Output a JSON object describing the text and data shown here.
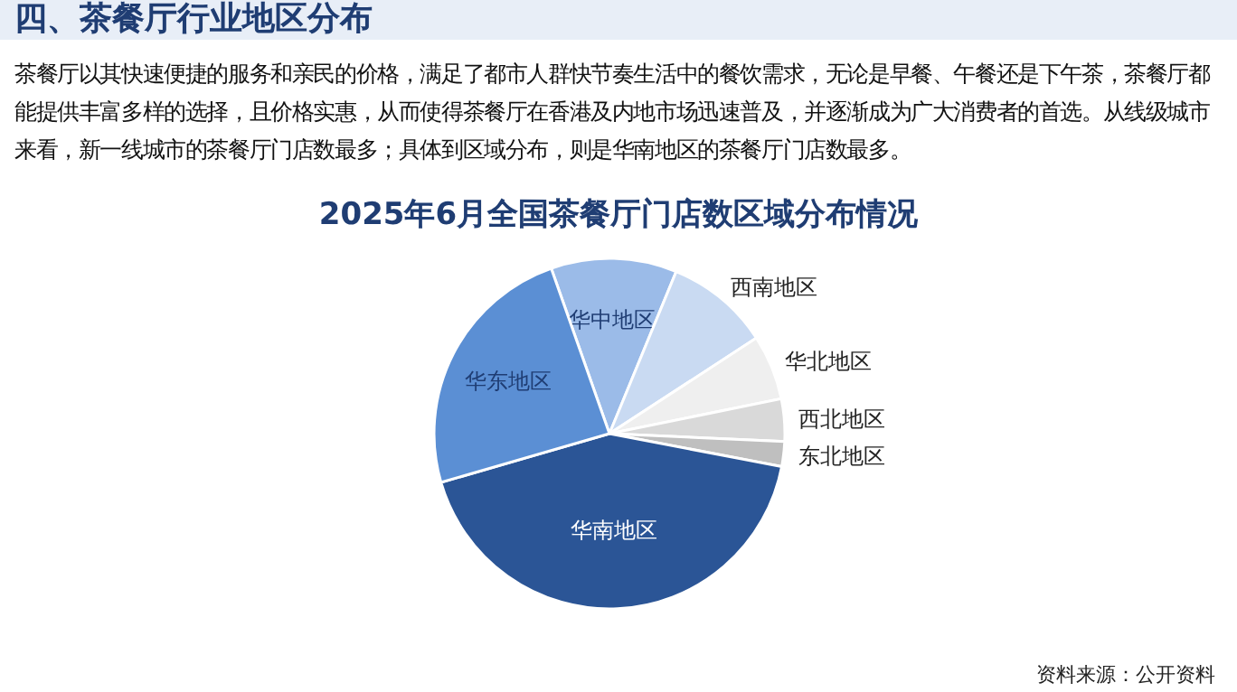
{
  "chart_data": {
    "type": "pie",
    "title": "2025年6月全国茶餐厅门店数区域分布情况",
    "categories": [
      "华中地区",
      "西南地区",
      "华北地区",
      "西北地区",
      "东北地区",
      "华南地区",
      "华东地区"
    ],
    "values": [
      11.6,
      9.6,
      6.0,
      3.9,
      2.3,
      42.5,
      24.1
    ],
    "colors": [
      "#9bbbe8",
      "#c9daf2",
      "#efefef",
      "#d9d9d9",
      "#bfbfbf",
      "#2b5596",
      "#5b8fd4"
    ],
    "annotations": [
      "四、茶餐厅行业地区分布",
      "茶餐厅以其快速便捷的服务和亲民的价格，满足了都市人群快节奏生活中的餐饮需求，无论是早餐、午餐还是下午茶，茶餐厅都能提供丰富多样的选择，且价格实惠，从而使得茶餐厅在香港及内地市场迅速普及，并逐渐成为广大消费者的首选。从线级城市来看，新一线城市的茶餐厅门店数最多；具体到区域分布，则是华南地区的茶餐厅门店数最多。",
      "资料来源：公开资料"
    ]
  }
}
